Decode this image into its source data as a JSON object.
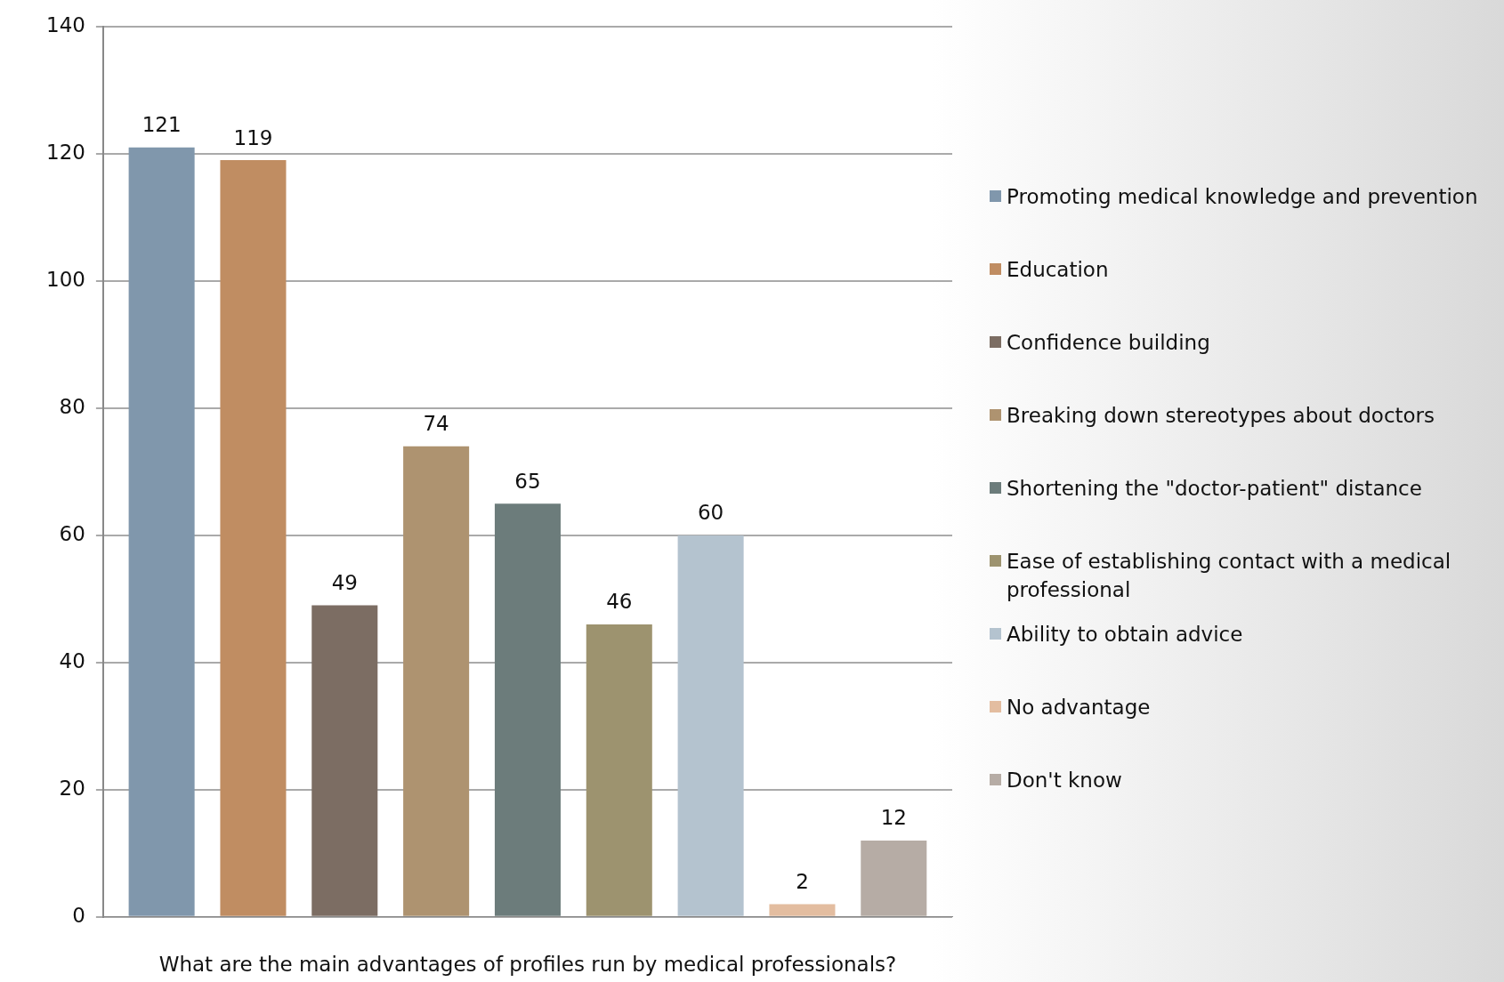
{
  "chart_data": {
    "type": "bar",
    "xlabel": "What are the main advantages of profiles run by medical professionals?",
    "categories": [
      null
    ],
    "series": [
      {
        "name": "Promoting medical knowledge and prevention",
        "color": "#8097ac",
        "values": [
          121
        ]
      },
      {
        "name": "Education",
        "color": "#c08d62",
        "values": [
          119
        ]
      },
      {
        "name": "Confidence building",
        "color": "#7c6d63",
        "values": [
          49
        ]
      },
      {
        "name": "Breaking down stereotypes about doctors",
        "color": "#ae9370",
        "values": [
          74
        ]
      },
      {
        "name": "Shortening the \"doctor-patient\" distance",
        "color": "#6c7c7b",
        "values": [
          65
        ]
      },
      {
        "name": "Ease of establishing contact with a medical professional",
        "color": "#9d936f",
        "values": [
          46
        ]
      },
      {
        "name": "Ability to obtain advice",
        "color": "#b4c3cf",
        "values": [
          60
        ]
      },
      {
        "name": "No advantage",
        "color": "#e3bda0",
        "values": [
          2
        ]
      },
      {
        "name": "Don't know",
        "color": "#b6aca5",
        "values": [
          12
        ]
      }
    ],
    "ylim": [
      0,
      140
    ],
    "yticks": [
      0,
      20,
      40,
      60,
      80,
      100,
      120,
      140
    ],
    "grid": "y",
    "legend": "right",
    "data_labels": true
  }
}
